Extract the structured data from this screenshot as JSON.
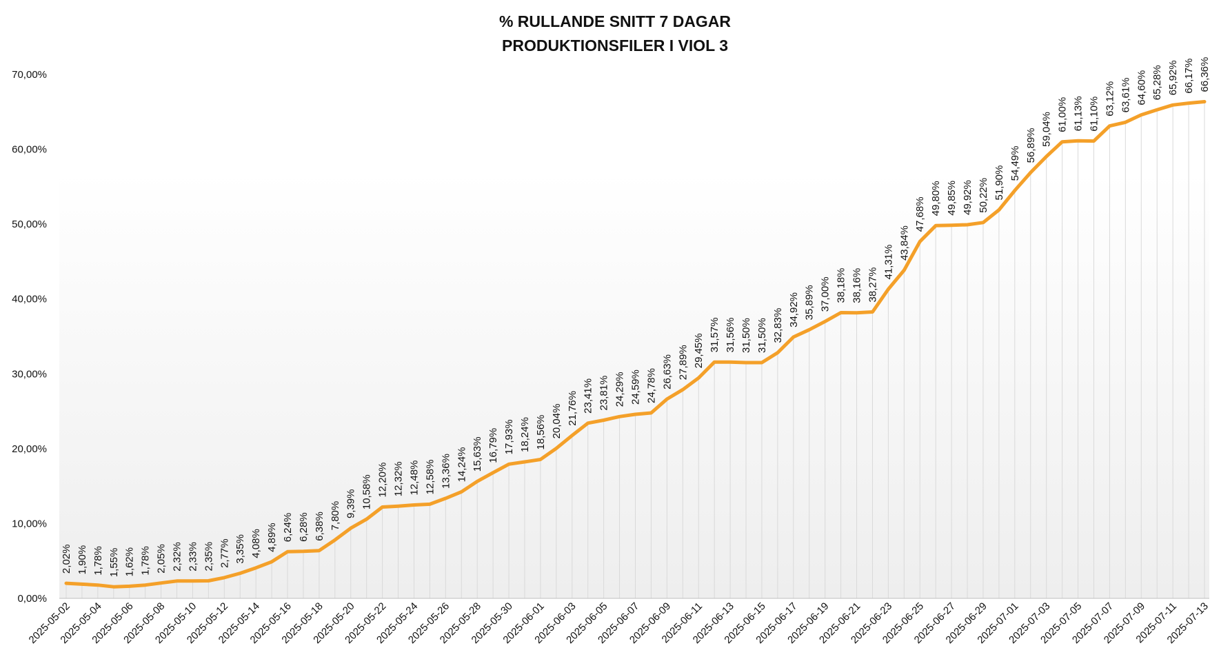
{
  "chart_data": {
    "type": "line",
    "title": "% RULLANDE SNITT 7 DAGAR",
    "subtitle": "PRODUKTIONSFILER I VIOL 3",
    "xlabel": "",
    "ylabel": "",
    "ylim": [
      0,
      70
    ],
    "y_ticks": [
      "0,00%",
      "10,00%",
      "20,00%",
      "30,00%",
      "40,00%",
      "50,00%",
      "60,00%",
      "70,00%"
    ],
    "x_tick_labels": [
      "2025-05-02",
      "2025-05-04",
      "2025-05-06",
      "2025-05-08",
      "2025-05-10",
      "2025-05-12",
      "2025-05-14",
      "2025-05-16",
      "2025-05-18",
      "2025-05-20",
      "2025-05-22",
      "2025-05-24",
      "2025-05-26",
      "2025-05-28",
      "2025-05-30",
      "2025-06-01",
      "2025-06-03",
      "2025-06-05",
      "2025-06-07",
      "2025-06-09",
      "2025-06-11",
      "2025-06-13",
      "2025-06-15",
      "2025-06-17",
      "2025-06-19",
      "2025-06-21",
      "2025-06-23",
      "2025-06-25",
      "2025-06-27",
      "2025-06-29",
      "2025-07-01",
      "2025-07-03",
      "2025-07-05",
      "2025-07-07",
      "2025-07-09",
      "2025-07-11",
      "2025-07-13"
    ],
    "series_color": "#F4A029",
    "grid": false,
    "drop_lines": true,
    "values": [
      2.02,
      1.9,
      1.78,
      1.55,
      1.62,
      1.78,
      2.05,
      2.32,
      2.33,
      2.35,
      2.77,
      3.35,
      4.08,
      4.89,
      6.24,
      6.28,
      6.38,
      7.8,
      9.39,
      10.58,
      12.2,
      12.32,
      12.48,
      12.58,
      13.36,
      14.24,
      15.63,
      16.79,
      17.93,
      18.24,
      18.56,
      20.04,
      21.76,
      23.41,
      23.81,
      24.29,
      24.59,
      24.78,
      26.63,
      27.89,
      29.45,
      31.57,
      31.56,
      31.5,
      31.5,
      32.83,
      34.92,
      35.89,
      37.0,
      38.18,
      38.16,
      38.27,
      41.31,
      43.84,
      47.68,
      49.8,
      49.85,
      49.92,
      50.22,
      51.9,
      54.49,
      56.89,
      59.04,
      61.0,
      61.13,
      61.1,
      63.12,
      63.61,
      64.6,
      65.28,
      65.92,
      66.17,
      66.36
    ],
    "data_labels": [
      "2,02%",
      "1,90%",
      "1,78%",
      "1,55%",
      "1,62%",
      "1,78%",
      "2,05%",
      "2,32%",
      "2,33%",
      "2,35%",
      "2,77%",
      "3,35%",
      "4,08%",
      "4,89%",
      "6,24%",
      "6,28%",
      "6,38%",
      "7,80%",
      "9,39%",
      "10,58%",
      "12,20%",
      "12,32%",
      "12,48%",
      "12,58%",
      "13,36%",
      "14,24%",
      "15,63%",
      "16,79%",
      "17,93%",
      "18,24%",
      "18,56%",
      "20,04%",
      "21,76%",
      "23,41%",
      "23,81%",
      "24,29%",
      "24,59%",
      "24,78%",
      "26,63%",
      "27,89%",
      "29,45%",
      "31,57%",
      "31,56%",
      "31,50%",
      "31,50%",
      "32,83%",
      "34,92%",
      "35,89%",
      "37,00%",
      "38,18%",
      "38,16%",
      "38,27%",
      "41,31%",
      "43,84%",
      "47,68%",
      "49,80%",
      "49,85%",
      "49,92%",
      "50,22%",
      "51,90%",
      "54,49%",
      "56,89%",
      "59,04%",
      "61,00%",
      "61,13%",
      "61,10%",
      "63,12%",
      "63,61%",
      "64,60%",
      "65,28%",
      "65,92%",
      "66,17%",
      "66,36%"
    ]
  }
}
